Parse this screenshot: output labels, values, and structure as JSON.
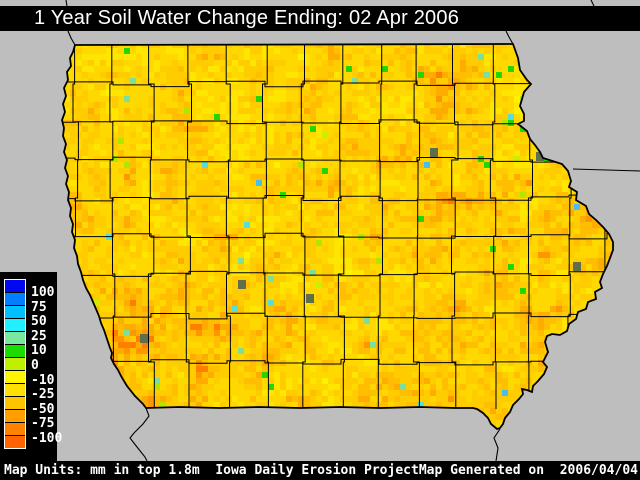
{
  "title": "1 Year Soil Water Change Ending: 02 Apr 2006",
  "footer": {
    "left": "Map Units: mm in top 1.8m  Iowa Daily Erosion Project",
    "right": "Map Generated on  2006/04/04"
  },
  "legend": {
    "labels": [
      "100",
      "75",
      "50",
      "25",
      "10",
      "0",
      "-10",
      "-25",
      "-50",
      "-75",
      "-100"
    ],
    "colors": [
      "#0008F0",
      "#0080FF",
      "#00C0FF",
      "#20F0FF",
      "#78E8A0",
      "#1ADC00",
      "#C0F000",
      "#FFF500",
      "#FFE000",
      "#FFC400",
      "#FFA000",
      "#FF8200",
      "#FF6400"
    ]
  },
  "map": {
    "region": "Iowa counties",
    "units": "mm in top 1.8m",
    "background_color": "#BEBEBE",
    "boundary_color": "#000000",
    "dry_to_wet_palette": [
      "#FFF200",
      "#FFE600",
      "#FFD800",
      "#FFCC00",
      "#FFBE00",
      "#FFAC00",
      "#FF9600",
      "#FF7E00"
    ],
    "wet_cell_colors": [
      "#24D600",
      "#B0E600",
      "#7CE09C",
      "#58DCDC",
      "#C8F000",
      "#48BEF0"
    ],
    "nodata_cell_color": "#5F6F4B"
  }
}
